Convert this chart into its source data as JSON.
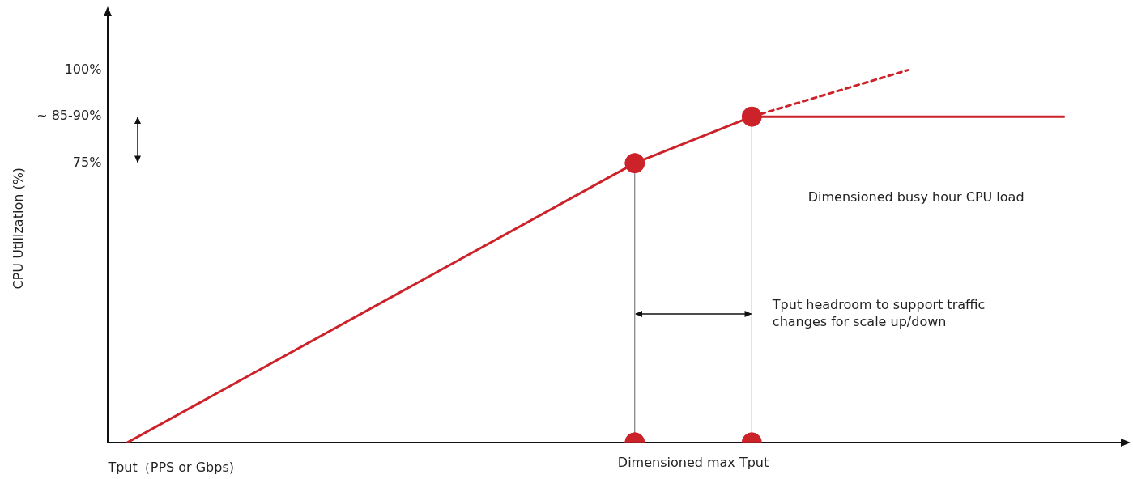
{
  "chart_data": {
    "type": "line",
    "xlabel": "Tput（PPS or Gbps)",
    "ylabel": "CPU Utilization (%)",
    "categories": [
      null,
      null,
      null,
      null,
      null,
      null,
      null,
      null,
      null,
      null,
      null,
      null,
      null,
      null,
      null,
      null,
      null,
      null,
      null,
      null,
      null,
      null,
      null,
      null,
      null,
      null
    ],
    "ylim": [
      0,
      115
    ],
    "yticks": [
      {
        "value": 75,
        "label": "75%"
      },
      {
        "value": 87.5,
        "label": "~ 85-90%"
      },
      {
        "value": 100,
        "label": "100%"
      }
    ],
    "tick_labels": "y",
    "grid": "y",
    "line_style": "dashed",
    "legend": false,
    "marker": "none",
    "series": [
      {
        "color": "#cc2229",
        "values": [
          0,
          null,
          null,
          null,
          null,
          null,
          null,
          null,
          null,
          null,
          null,
          null,
          null,
          75,
          null,
          null,
          87.5,
          null,
          null,
          null,
          null,
          null,
          null,
          null,
          87.5,
          null
        ],
        "line_style": "solid"
      },
      {
        "color": "#cc2229",
        "values": [
          null,
          null,
          null,
          null,
          null,
          null,
          null,
          null,
          null,
          null,
          null,
          null,
          null,
          null,
          null,
          null,
          87.5,
          null,
          null,
          null,
          100,
          null,
          null,
          null,
          null,
          null
        ]
      },
      {
        "type": "lollipop",
        "color": "#cc2229",
        "values": [
          null,
          null,
          null,
          null,
          null,
          null,
          null,
          null,
          null,
          null,
          null,
          null,
          null,
          75,
          null,
          null,
          87.5,
          null,
          null,
          null,
          null,
          null,
          null,
          null,
          null,
          null
        ],
        "marker": "circle"
      },
      {
        "type": "scatter",
        "color": "#cc2229",
        "values": [
          null,
          null,
          null,
          null,
          null,
          null,
          null,
          null,
          null,
          null,
          null,
          null,
          null,
          0,
          null,
          null,
          0,
          null,
          null,
          null,
          null,
          null,
          null,
          null,
          null,
          null
        ],
        "marker": "circle"
      }
    ],
    "annotations": [
      "Dimensioned busy hour CPU load",
      "Tput headroom to support traffic changes for scale up/down",
      "Dimensioned max Tput"
    ]
  }
}
